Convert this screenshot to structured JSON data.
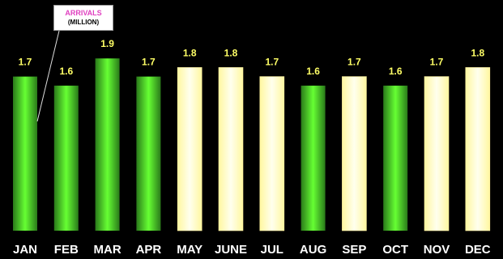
{
  "chart_data": {
    "type": "bar",
    "categories": [
      "JAN",
      "FEB",
      "MAR",
      "APR",
      "MAY",
      "JUNE",
      "JUL",
      "AUG",
      "SEP",
      "OCT",
      "NOV",
      "DEC"
    ],
    "values": [
      1.7,
      1.6,
      1.9,
      1.7,
      1.8,
      1.8,
      1.7,
      1.6,
      1.7,
      1.6,
      1.7,
      1.8
    ],
    "value_labels": [
      "1.7",
      "1.6",
      "1.9",
      "1.7",
      "1.8",
      "1.8",
      "1.7",
      "1.6",
      "1.7",
      "1.6",
      "1.7",
      "1.8"
    ],
    "bar_styles": [
      "green",
      "green",
      "green",
      "green",
      "cream",
      "cream",
      "cream",
      "green",
      "cream",
      "green",
      "cream",
      "cream"
    ],
    "ylim": [
      0,
      2.1
    ],
    "grid": false,
    "legend": "none",
    "callout": {
      "title": "ARRIVALS",
      "unit": "(MILLION)"
    },
    "title": "",
    "xlabel": "",
    "ylabel": ""
  },
  "colors": {
    "background": "#000000",
    "value_label": "#ffff66",
    "category_label": "#ffffff",
    "callout_title": "#e040c0",
    "green_dark": "#2f8f1f",
    "green_light": "#66ff33",
    "cream_edge": "#fff9b0",
    "cream_center": "#ffffe8"
  }
}
